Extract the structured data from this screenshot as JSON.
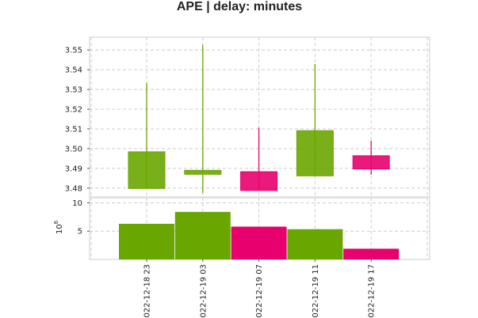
{
  "chart_data": {
    "type": "candlestick",
    "title": "APE | delay: minutes",
    "colors": {
      "up": "#6aa600",
      "down": "#e8006e"
    },
    "categories": [
      "2022-12-18 23",
      "2022-12-19 03",
      "2022-12-19 07",
      "2022-12-19 11",
      "2022-12-19 17"
    ],
    "x_tick_labels": [
      "022-12-18 23",
      "022-12-19 03",
      "022-12-19 07",
      "022-12-19 11",
      "022-12-19 17"
    ],
    "price_panel": {
      "ylim": [
        3.4755,
        3.5565
      ],
      "yticks": [
        "3.48",
        "3.49",
        "3.50",
        "3.51",
        "3.52",
        "3.53",
        "3.54",
        "3.55"
      ],
      "candles": [
        {
          "open": 3.4798,
          "close": 3.4984,
          "high": 3.5334,
          "low": 3.4798,
          "dir": "up"
        },
        {
          "open": 3.487,
          "close": 3.489,
          "high": 3.5526,
          "low": 3.4775,
          "dir": "up"
        },
        {
          "open": 3.4883,
          "close": 3.4788,
          "high": 3.5107,
          "low": 3.4787,
          "dir": "down"
        },
        {
          "open": 3.4862,
          "close": 3.5091,
          "high": 3.5429,
          "low": 3.4862,
          "dir": "up"
        },
        {
          "open": 3.4964,
          "close": 3.4897,
          "high": 3.504,
          "low": 3.4868,
          "dir": "down"
        }
      ]
    },
    "volume_panel": {
      "ylabel": "10^6",
      "ylim": [
        0,
        10.9
      ],
      "yticks": [
        "5",
        "10"
      ],
      "values": [
        6.3,
        8.4,
        5.8,
        5.35,
        1.9
      ],
      "dirs": [
        "up",
        "up",
        "down",
        "up",
        "down"
      ]
    }
  }
}
